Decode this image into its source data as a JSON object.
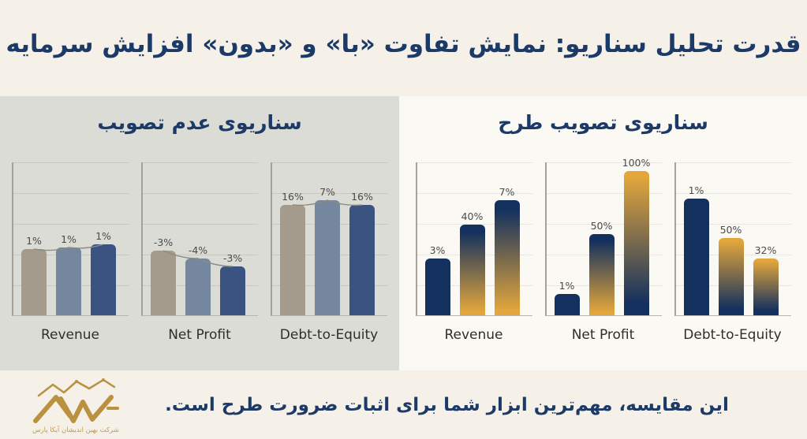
{
  "title": "قدرت تحلیل سناریو: نمایش تفاوت «با» و «بدون» افزایش سرمایه",
  "panels": {
    "left": {
      "title": "سناریوی عدم تصویب"
    },
    "right": {
      "title": "سناریوی تصویب طرح"
    }
  },
  "footer": {
    "caption": "این مقایسه، مهم‌ترین ابزار شما برای اثبات ضرورت طرح است.",
    "logo_subtext": "شرکت بهین اندیشان آیکا پارس"
  },
  "colors": {
    "background": "#f6f1e8",
    "panel_left_bg": "#dcdcd6",
    "panel_right_bg": "#fbf9f4",
    "navy_text": "#1c3a68",
    "bar_tan": "#a49b8c",
    "bar_slate": "#75869f",
    "bar_navy_left": "#3a5381",
    "bar_navy": "#14305e",
    "gold": "#e2a63c",
    "connector": "#8b8b85",
    "logo_gold": "#b9913f"
  },
  "chart_data": [
    {
      "panel": "left",
      "scenario": "سناریوی عدم تصویب",
      "type": "bar",
      "unit": "%",
      "grid": true,
      "charts": [
        {
          "category": "Revenue",
          "values": [
            1,
            1,
            1
          ],
          "labels": [
            "1%",
            "1%",
            "1%"
          ],
          "fills": [
            "tan",
            "slate",
            "navyLeft"
          ],
          "height_fracs": [
            0.43,
            0.44,
            0.46
          ],
          "connector": true
        },
        {
          "category": "Net Profit",
          "values": [
            -3,
            -4,
            -3
          ],
          "labels": [
            "-3%",
            "-4%",
            "-3%"
          ],
          "fills": [
            "tan",
            "slate",
            "navyLeft"
          ],
          "height_fracs": [
            0.42,
            0.37,
            0.32
          ],
          "connector": true
        },
        {
          "category": "Debt-to-Equity",
          "values": [
            16,
            7,
            16
          ],
          "labels": [
            "16%",
            "7%",
            "16%"
          ],
          "fills": [
            "tan",
            "slate",
            "navyLeft"
          ],
          "height_fracs": [
            0.72,
            0.75,
            0.72
          ],
          "connector": true
        }
      ]
    },
    {
      "panel": "right",
      "scenario": "سناریوی تصویب طرح",
      "type": "bar",
      "unit": "%",
      "grid": true,
      "charts": [
        {
          "category": "Revenue",
          "values": [
            3,
            40,
            7
          ],
          "labels": [
            "3%",
            "40%",
            "7%"
          ],
          "fills": [
            "navy",
            "navyGold",
            "navyGold"
          ],
          "height_fracs": [
            0.37,
            0.59,
            0.75
          ],
          "connector": false
        },
        {
          "category": "Net Profit",
          "values": [
            1,
            50,
            100
          ],
          "labels": [
            "1%",
            "50%",
            "100%"
          ],
          "fills": [
            "navy",
            "navyGold",
            "goldNavy"
          ],
          "height_fracs": [
            0.14,
            0.53,
            0.94
          ],
          "connector": false
        },
        {
          "category": "Debt-to-Equity",
          "values": [
            1,
            50,
            32
          ],
          "labels": [
            "1%",
            "50%",
            "32%"
          ],
          "fills": [
            "navy",
            "goldNavy",
            "goldNavy"
          ],
          "height_fracs": [
            0.76,
            0.5,
            0.37
          ],
          "connector": false
        }
      ]
    }
  ]
}
